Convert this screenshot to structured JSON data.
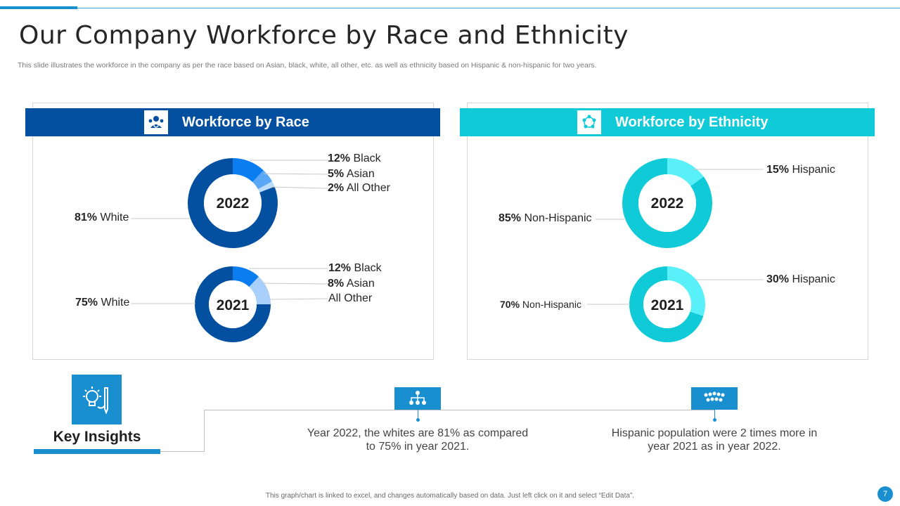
{
  "title": "Our Company Workforce by Race and Ethnicity",
  "subtitle": "This slide illustrates the workforce in the company as per the race based on Asian, black, white, all other, etc. as well as ethnicity based on Hispanic & non-hispanic for two years.",
  "race_panel": {
    "title": "Workforce by Race",
    "icon": "team-gear-icon"
  },
  "ethnicity_panel": {
    "title": "Workforce by Ethnicity",
    "icon": "people-circle-icon"
  },
  "colors": {
    "race_band": "#034fa0",
    "eth_band": "#10cad8",
    "white": "#034fa0",
    "black": "#0a7df0",
    "asian": "#5aa8f5",
    "asian_2021": "#a9d0fb",
    "other": "#bcdcfc",
    "non_hispanic": "#10cad8",
    "hispanic": "#5af0fa",
    "accent": "#1a8fd0"
  },
  "chart_data": [
    {
      "type": "pie",
      "title": "Workforce by Race",
      "year": "2022",
      "categories": [
        "Black",
        "Asian",
        "All Other",
        "White"
      ],
      "values": [
        12,
        5,
        2,
        81
      ],
      "labels": [
        {
          "pct": "12%",
          "name": "Black"
        },
        {
          "pct": "5%",
          "name": "Asian"
        },
        {
          "pct": "2%",
          "name": "All Other"
        },
        {
          "pct": "81%",
          "name": "White"
        }
      ]
    },
    {
      "type": "pie",
      "title": "Workforce by Race",
      "year": "2021",
      "categories": [
        "Black",
        "Asian",
        "All Other",
        "White"
      ],
      "values": [
        12,
        8,
        5,
        75
      ],
      "labels": [
        {
          "pct": "12%",
          "name": "Black"
        },
        {
          "pct": "8%",
          "name": "Asian"
        },
        {
          "pct": "",
          "name": "All Other"
        },
        {
          "pct": "75%",
          "name": "White"
        }
      ]
    },
    {
      "type": "pie",
      "title": "Workforce by Ethnicity",
      "year": "2022",
      "categories": [
        "Hispanic",
        "Non-Hispanic"
      ],
      "values": [
        15,
        85
      ],
      "labels": [
        {
          "pct": "15%",
          "name": "Hispanic"
        },
        {
          "pct": "85%",
          "name": "Non-Hispanic"
        }
      ]
    },
    {
      "type": "pie",
      "title": "Workforce by Ethnicity",
      "year": "2021",
      "categories": [
        "Hispanic",
        "Non-Hispanic"
      ],
      "values": [
        30,
        70
      ],
      "labels": [
        {
          "pct": "30%",
          "name": "Hispanic"
        },
        {
          "pct": "70%",
          "name": "Non-Hispanic"
        }
      ]
    }
  ],
  "key_insights": {
    "title": "Key Insights",
    "icon": "lightbulb-pencil-icon",
    "items": [
      {
        "icon": "org-hierarchy-icon",
        "text": "Year 2022, the whites are 81% as compared to 75% in year 2021."
      },
      {
        "icon": "crowd-icon",
        "text": "Hispanic population were 2 times more in year 2021 as in year 2022."
      }
    ]
  },
  "footer": "This graph/chart is linked to excel, and changes automatically based on data. Just left click on it and select “Edit Data”.",
  "page_number": "7"
}
